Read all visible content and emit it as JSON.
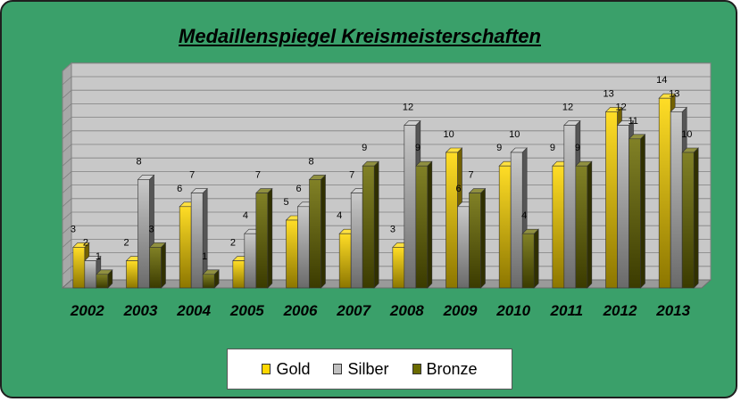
{
  "chart_data": {
    "type": "bar",
    "title": "Medaillenspiegel Kreismeisterschaften",
    "categories": [
      "2002",
      "2003",
      "2004",
      "2005",
      "2006",
      "2007",
      "2008",
      "2009",
      "2010",
      "2011",
      "2012",
      "2013"
    ],
    "series": [
      {
        "name": "Gold",
        "color": "#ffd700",
        "values": [
          3,
          2,
          6,
          2,
          5,
          4,
          3,
          10,
          9,
          9,
          13,
          14
        ]
      },
      {
        "name": "Silber",
        "color": "#c0c0c0",
        "values": [
          2,
          8,
          7,
          4,
          6,
          7,
          12,
          6,
          10,
          12,
          12,
          13
        ]
      },
      {
        "name": "Bronze",
        "color": "#6b6b00",
        "values": [
          1,
          3,
          1,
          7,
          8,
          9,
          9,
          7,
          4,
          9,
          11,
          10
        ]
      }
    ],
    "ylim": [
      0,
      16
    ],
    "grid": true,
    "legend_position": "bottom",
    "style": "3d-clustered-column"
  }
}
